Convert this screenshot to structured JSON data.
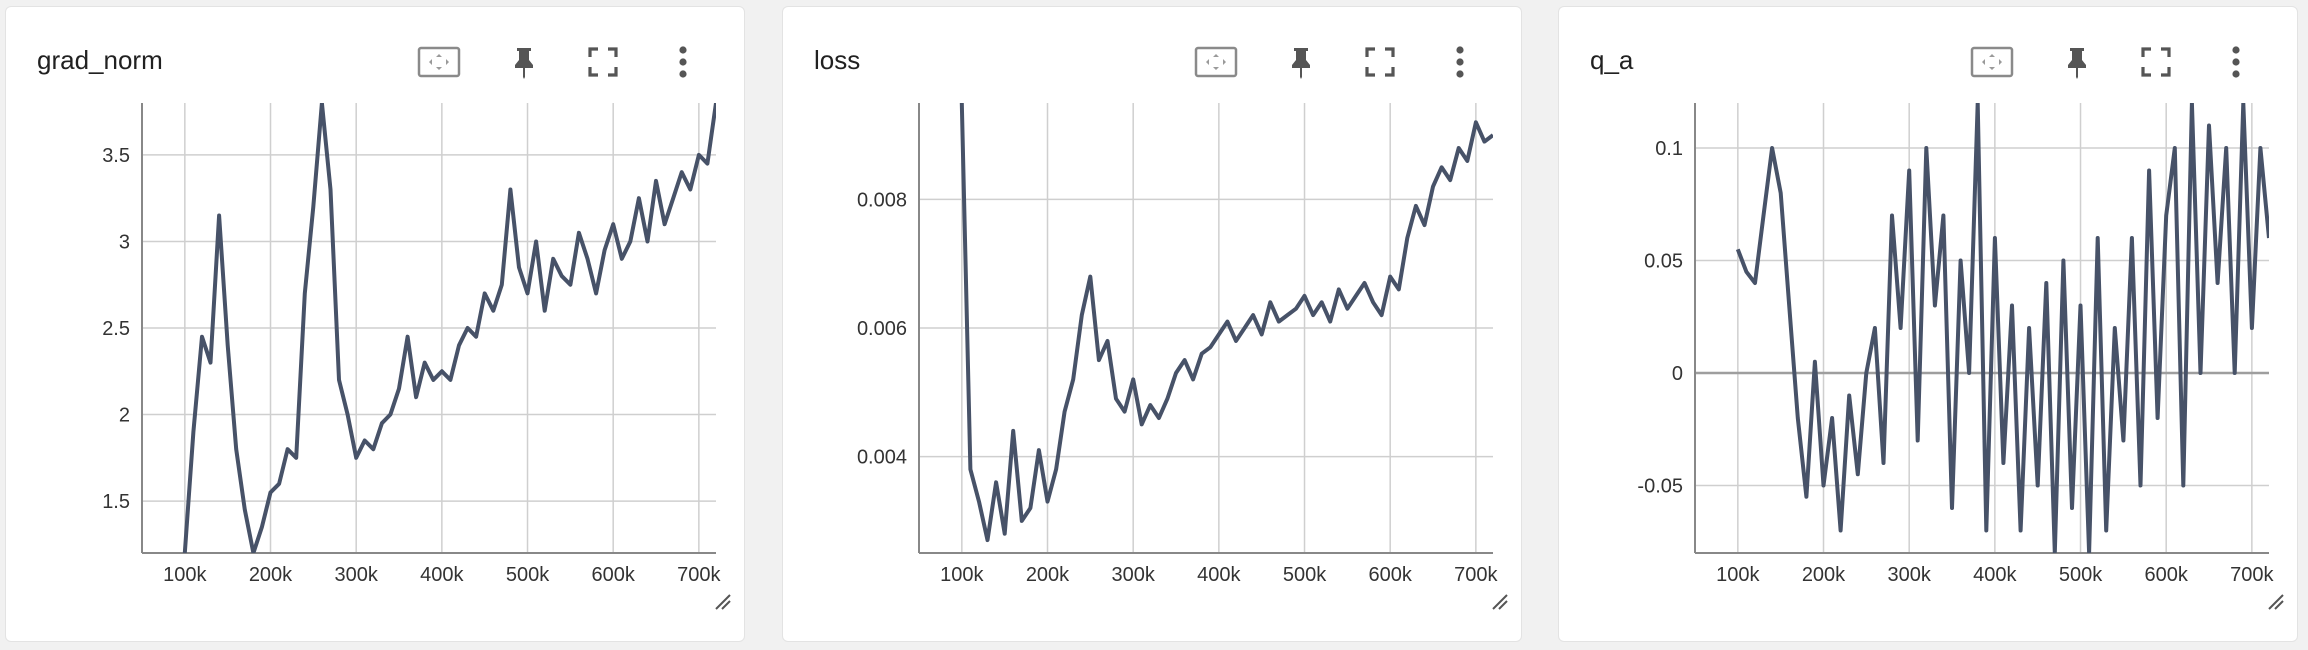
{
  "colors": {
    "line": "#475268",
    "grid": "#cfcfcf",
    "axis": "#888888",
    "card_bg": "#ffffff",
    "page_bg": "#f1f1f1"
  },
  "toolbar_icons": [
    "fit-domain-icon",
    "pin-icon",
    "fullscreen-icon",
    "more-vert-icon"
  ],
  "chart_data": [
    {
      "type": "line",
      "title": "grad_norm",
      "xlim": [
        50000,
        720000
      ],
      "ylim": [
        1.2,
        3.8
      ],
      "xticks": [
        100000,
        200000,
        300000,
        400000,
        500000,
        600000,
        700000
      ],
      "xtick_labels": [
        "100k",
        "200k",
        "300k",
        "400k",
        "500k",
        "600k",
        "700k"
      ],
      "yticks": [
        1.5,
        2,
        2.5,
        3,
        3.5
      ],
      "ytick_labels": [
        "1.5",
        "2",
        "2.5",
        "3",
        "3.5"
      ],
      "grid": true,
      "x": [
        100000,
        110000,
        120000,
        130000,
        140000,
        150000,
        160000,
        170000,
        180000,
        190000,
        200000,
        210000,
        220000,
        230000,
        240000,
        250000,
        260000,
        270000,
        280000,
        290000,
        300000,
        310000,
        320000,
        330000,
        340000,
        350000,
        360000,
        370000,
        380000,
        390000,
        400000,
        410000,
        420000,
        430000,
        440000,
        450000,
        460000,
        470000,
        480000,
        490000,
        500000,
        510000,
        520000,
        530000,
        540000,
        550000,
        560000,
        570000,
        580000,
        590000,
        600000,
        610000,
        620000,
        630000,
        640000,
        650000,
        660000,
        670000,
        680000,
        690000,
        700000,
        710000,
        720000
      ],
      "y": [
        1.2,
        1.9,
        2.45,
        2.3,
        3.15,
        2.4,
        1.8,
        1.45,
        1.2,
        1.35,
        1.55,
        1.6,
        1.8,
        1.75,
        2.7,
        3.2,
        3.8,
        3.3,
        2.2,
        2.0,
        1.75,
        1.85,
        1.8,
        1.95,
        2.0,
        2.15,
        2.45,
        2.1,
        2.3,
        2.2,
        2.25,
        2.2,
        2.4,
        2.5,
        2.45,
        2.7,
        2.6,
        2.75,
        3.3,
        2.85,
        2.7,
        3.0,
        2.6,
        2.9,
        2.8,
        2.75,
        3.05,
        2.9,
        2.7,
        2.95,
        3.1,
        2.9,
        3.0,
        3.25,
        3.0,
        3.35,
        3.1,
        3.25,
        3.4,
        3.3,
        3.5,
        3.45,
        3.8
      ]
    },
    {
      "type": "line",
      "title": "loss",
      "xlim": [
        50000,
        720000
      ],
      "ylim": [
        0.0025,
        0.0095
      ],
      "xticks": [
        100000,
        200000,
        300000,
        400000,
        500000,
        600000,
        700000
      ],
      "xtick_labels": [
        "100k",
        "200k",
        "300k",
        "400k",
        "500k",
        "600k",
        "700k"
      ],
      "yticks": [
        0.004,
        0.006,
        0.008
      ],
      "ytick_labels": [
        "0.004",
        "0.006",
        "0.008"
      ],
      "grid": true,
      "x": [
        100000,
        110000,
        120000,
        130000,
        140000,
        150000,
        160000,
        170000,
        180000,
        190000,
        200000,
        210000,
        220000,
        230000,
        240000,
        250000,
        260000,
        270000,
        280000,
        290000,
        300000,
        310000,
        320000,
        330000,
        340000,
        350000,
        360000,
        370000,
        380000,
        390000,
        400000,
        410000,
        420000,
        430000,
        440000,
        450000,
        460000,
        470000,
        480000,
        490000,
        500000,
        510000,
        520000,
        530000,
        540000,
        550000,
        560000,
        570000,
        580000,
        590000,
        600000,
        610000,
        620000,
        630000,
        640000,
        650000,
        660000,
        670000,
        680000,
        690000,
        700000,
        710000,
        720000
      ],
      "y": [
        0.0095,
        0.0038,
        0.0033,
        0.0027,
        0.0036,
        0.0028,
        0.0044,
        0.003,
        0.0032,
        0.0041,
        0.0033,
        0.0038,
        0.0047,
        0.0052,
        0.0062,
        0.0068,
        0.0055,
        0.0058,
        0.0049,
        0.0047,
        0.0052,
        0.0045,
        0.0048,
        0.0046,
        0.0049,
        0.0053,
        0.0055,
        0.0052,
        0.0056,
        0.0057,
        0.0059,
        0.0061,
        0.0058,
        0.006,
        0.0062,
        0.0059,
        0.0064,
        0.0061,
        0.0062,
        0.0063,
        0.0065,
        0.0062,
        0.0064,
        0.0061,
        0.0066,
        0.0063,
        0.0065,
        0.0067,
        0.0064,
        0.0062,
        0.0068,
        0.0066,
        0.0074,
        0.0079,
        0.0076,
        0.0082,
        0.0085,
        0.0083,
        0.0088,
        0.0086,
        0.0092,
        0.0089,
        0.009
      ]
    },
    {
      "type": "line",
      "title": "q_a",
      "xlim": [
        50000,
        720000
      ],
      "ylim": [
        -0.08,
        0.12
      ],
      "xticks": [
        100000,
        200000,
        300000,
        400000,
        500000,
        600000,
        700000
      ],
      "xtick_labels": [
        "100k",
        "200k",
        "300k",
        "400k",
        "500k",
        "600k",
        "700k"
      ],
      "yticks": [
        -0.05,
        0,
        0.05,
        0.1
      ],
      "ytick_labels": [
        "-0.05",
        "0",
        "0.05",
        "0.1"
      ],
      "grid": true,
      "x": [
        100000,
        110000,
        120000,
        130000,
        140000,
        150000,
        160000,
        170000,
        180000,
        190000,
        200000,
        210000,
        220000,
        230000,
        240000,
        250000,
        260000,
        270000,
        280000,
        290000,
        300000,
        310000,
        320000,
        330000,
        340000,
        350000,
        360000,
        370000,
        380000,
        390000,
        400000,
        410000,
        420000,
        430000,
        440000,
        450000,
        460000,
        470000,
        480000,
        490000,
        500000,
        510000,
        520000,
        530000,
        540000,
        550000,
        560000,
        570000,
        580000,
        590000,
        600000,
        610000,
        620000,
        630000,
        640000,
        650000,
        660000,
        670000,
        680000,
        690000,
        700000,
        710000,
        720000
      ],
      "y": [
        0.055,
        0.045,
        0.04,
        0.07,
        0.1,
        0.08,
        0.03,
        -0.02,
        -0.055,
        0.005,
        -0.05,
        -0.02,
        -0.07,
        -0.01,
        -0.045,
        0.0,
        0.02,
        -0.04,
        0.07,
        0.02,
        0.09,
        -0.03,
        0.1,
        0.03,
        0.07,
        -0.06,
        0.05,
        0.0,
        0.12,
        -0.07,
        0.06,
        -0.04,
        0.03,
        -0.07,
        0.02,
        -0.05,
        0.04,
        -0.08,
        0.05,
        -0.06,
        0.03,
        -0.08,
        0.06,
        -0.07,
        0.02,
        -0.03,
        0.06,
        -0.05,
        0.09,
        -0.02,
        0.07,
        0.1,
        -0.05,
        0.12,
        0.0,
        0.11,
        0.04,
        0.1,
        0.0,
        0.12,
        0.02,
        0.1,
        0.06
      ]
    }
  ]
}
